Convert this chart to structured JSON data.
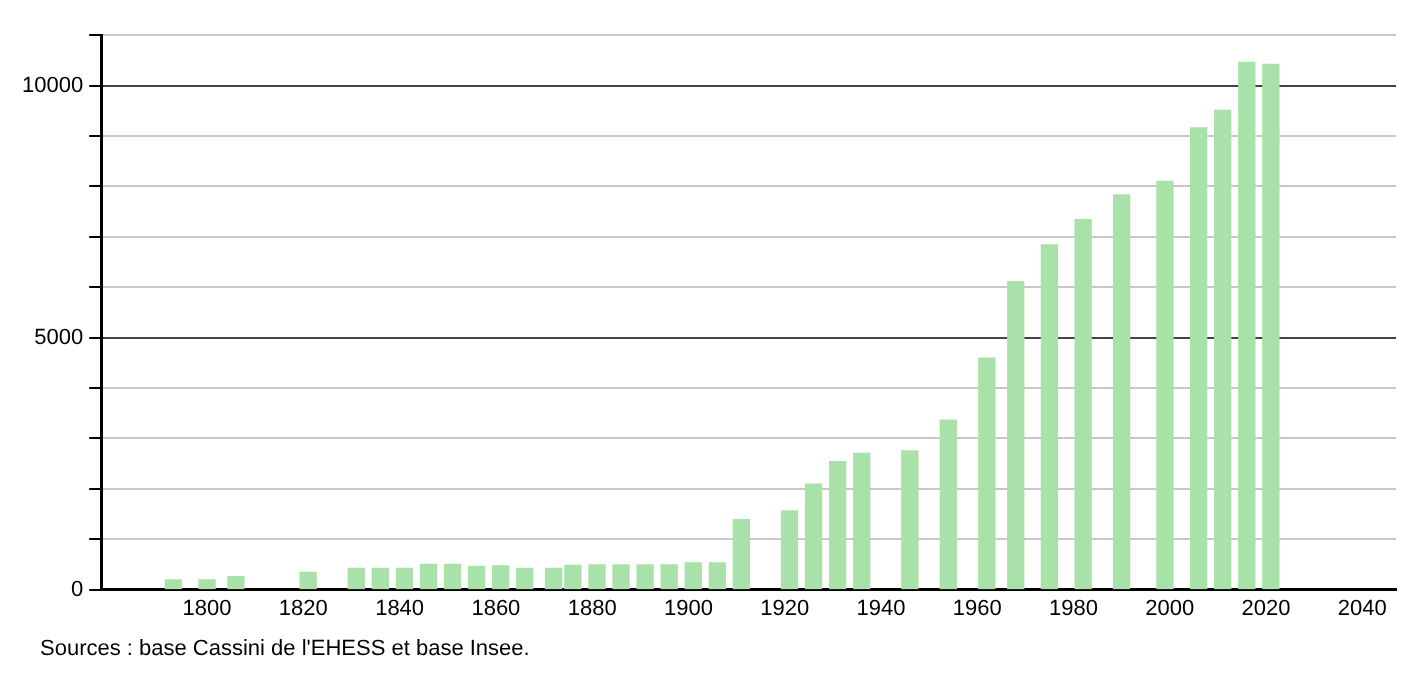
{
  "chart_data": {
    "type": "bar",
    "color": "#a8e2a8",
    "x": [
      1793,
      1800,
      1806,
      1821,
      1831,
      1836,
      1841,
      1846,
      1851,
      1856,
      1861,
      1866,
      1872,
      1876,
      1881,
      1886,
      1891,
      1896,
      1901,
      1906,
      1911,
      1921,
      1926,
      1931,
      1936,
      1946,
      1954,
      1962,
      1968,
      1975,
      1982,
      1990,
      1999,
      2006,
      2011,
      2016,
      2021
    ],
    "values": [
      190,
      190,
      255,
      340,
      420,
      420,
      420,
      500,
      500,
      460,
      470,
      420,
      420,
      480,
      490,
      490,
      490,
      490,
      530,
      530,
      1390,
      1560,
      2090,
      2540,
      2700,
      2750,
      3360,
      4590,
      6110,
      6840,
      7340,
      7830,
      8100,
      9160,
      9510,
      10460,
      10420
    ],
    "xlim": [
      1778,
      2047
    ],
    "xticks": [
      1800,
      1820,
      1840,
      1860,
      1880,
      1900,
      1920,
      1940,
      1960,
      1980,
      2000,
      2020,
      2040
    ],
    "ylim": [
      0,
      11000
    ],
    "yticks": [
      0,
      {
        "value": 1000,
        "label": null
      },
      {
        "value": 2000,
        "label": null
      },
      {
        "value": 3000,
        "label": null
      },
      {
        "value": 4000,
        "label": null
      },
      5000,
      {
        "value": 6000,
        "label": null
      },
      {
        "value": 7000,
        "label": null
      },
      {
        "value": 8000,
        "label": null
      },
      {
        "value": 9000,
        "label": null
      },
      10000,
      {
        "value": 11000,
        "label": null
      }
    ],
    "grid": "y",
    "legend": false,
    "annotations": [
      "Sources : base Cassini de l'EHESS et base Insee."
    ]
  }
}
